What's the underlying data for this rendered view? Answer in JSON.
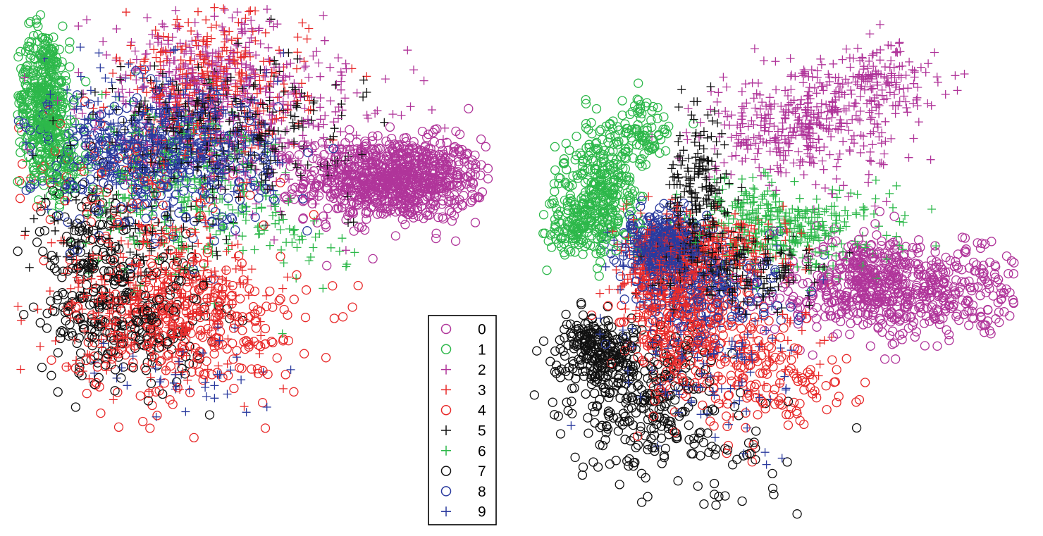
{
  "chart_data": [
    {
      "type": "scatter",
      "title": "",
      "xlabel": "",
      "ylabel": "",
      "grid": false,
      "axes_shown": false,
      "clusters": {
        "0": [
          [
            2.6,
            5.4,
            0.75,
            0.55,
            900
          ]
        ],
        "1": [
          [
            -3.35,
            7.6,
            0.22,
            0.95,
            420
          ],
          [
            -3.1,
            5.9,
            0.25,
            0.6,
            120
          ]
        ],
        "2": [
          [
            -0.6,
            7.9,
            1.0,
            1.0,
            420
          ],
          [
            0.8,
            6.3,
            1.1,
            0.9,
            200
          ]
        ],
        "3": [
          [
            -0.5,
            7.8,
            0.8,
            1.0,
            320
          ],
          [
            -1.4,
            2.3,
            0.9,
            1.0,
            360
          ]
        ],
        "4": [
          [
            -0.9,
            1.4,
            1.0,
            1.0,
            320
          ],
          [
            -1.9,
            5.3,
            1.2,
            1.0,
            120
          ]
        ],
        "5": [
          [
            -0.3,
            6.7,
            1.1,
            0.9,
            300
          ],
          [
            -2.1,
            3.9,
            0.8,
            0.7,
            100
          ]
        ],
        "6": [
          [
            -0.8,
            4.7,
            0.9,
            1.0,
            220
          ],
          [
            -1.6,
            6.0,
            0.9,
            0.8,
            140
          ],
          [
            1.1,
            3.6,
            0.35,
            0.4,
            30
          ]
        ],
        "7": [
          [
            -2.0,
            1.7,
            0.7,
            0.9,
            260
          ],
          [
            -2.6,
            3.7,
            0.4,
            0.9,
            120
          ]
        ],
        "8": [
          [
            -1.5,
            5.9,
            1.0,
            0.9,
            420
          ]
        ],
        "9": [
          [
            -1.1,
            6.6,
            0.9,
            1.0,
            320
          ],
          [
            -0.8,
            0.2,
            0.7,
            0.6,
            40
          ]
        ]
      },
      "xlim": [
        -3.8,
        4.2
      ],
      "ylim": [
        -2.0,
        10.0
      ]
    },
    {
      "type": "scatter",
      "title": "",
      "xlabel": "",
      "ylabel": "",
      "grid": false,
      "axes_shown": false,
      "clusters": {
        "0": [
          [
            4.1,
            4.6,
            1.6,
            0.55,
            560
          ],
          [
            3.0,
            5.0,
            0.5,
            0.45,
            180
          ]
        ],
        "1": [
          [
            -2.9,
            6.9,
            0.45,
            0.75,
            320
          ],
          [
            -3.5,
            6.0,
            0.35,
            0.35,
            120
          ],
          [
            -2.0,
            8.2,
            0.3,
            0.35,
            80
          ]
        ],
        "2": [
          [
            1.6,
            8.3,
            1.1,
            0.6,
            360
          ],
          [
            3.2,
            9.4,
            0.8,
            0.4,
            160
          ]
        ],
        "3": [
          [
            -1.55,
            4.9,
            0.45,
            0.65,
            320
          ],
          [
            -0.45,
            5.6,
            0.8,
            0.35,
            260
          ],
          [
            0.5,
            3.3,
            1.0,
            0.8,
            70
          ]
        ],
        "4": [
          [
            -0.9,
            3.7,
            0.8,
            0.7,
            300
          ],
          [
            0.7,
            2.4,
            1.0,
            0.6,
            120
          ]
        ],
        "5": [
          [
            -0.7,
            6.7,
            0.35,
            0.9,
            200
          ],
          [
            0.2,
            5.1,
            0.9,
            0.4,
            180
          ]
        ],
        "6": [
          [
            1.4,
            6.0,
            1.1,
            0.45,
            300
          ],
          [
            0.6,
            6.5,
            0.5,
            0.3,
            60
          ]
        ],
        "7": [
          [
            -3.1,
            3.3,
            0.45,
            0.45,
            220
          ],
          [
            -2.0,
            2.2,
            0.8,
            0.8,
            260
          ],
          [
            -0.3,
            0.8,
            1.0,
            0.8,
            60
          ]
        ],
        "8": [
          [
            -1.5,
            5.7,
            0.4,
            0.35,
            320
          ],
          [
            -0.6,
            4.6,
            0.9,
            0.55,
            200
          ]
        ],
        "9": [
          [
            -1.6,
            5.4,
            0.5,
            0.3,
            160
          ],
          [
            -0.5,
            3.2,
            1.0,
            1.0,
            120
          ]
        ]
      },
      "xlim": [
        -4.8,
        6.4
      ],
      "ylim": [
        -0.7,
        11.0
      ]
    }
  ],
  "legend": {
    "placement": "center-bottom",
    "entries": [
      {
        "label": "0",
        "color": "#b0359a",
        "marker": "circle"
      },
      {
        "label": "1",
        "color": "#2db84a",
        "marker": "circle"
      },
      {
        "label": "2",
        "color": "#b0359a",
        "marker": "plus"
      },
      {
        "label": "3",
        "color": "#e82a2a",
        "marker": "plus"
      },
      {
        "label": "4",
        "color": "#e82a2a",
        "marker": "circle"
      },
      {
        "label": "5",
        "color": "#111111",
        "marker": "plus"
      },
      {
        "label": "6",
        "color": "#2db84a",
        "marker": "plus"
      },
      {
        "label": "7",
        "color": "#111111",
        "marker": "circle"
      },
      {
        "label": "8",
        "color": "#2a3a9e",
        "marker": "circle"
      },
      {
        "label": "9",
        "color": "#2a3a9e",
        "marker": "plus"
      }
    ]
  }
}
